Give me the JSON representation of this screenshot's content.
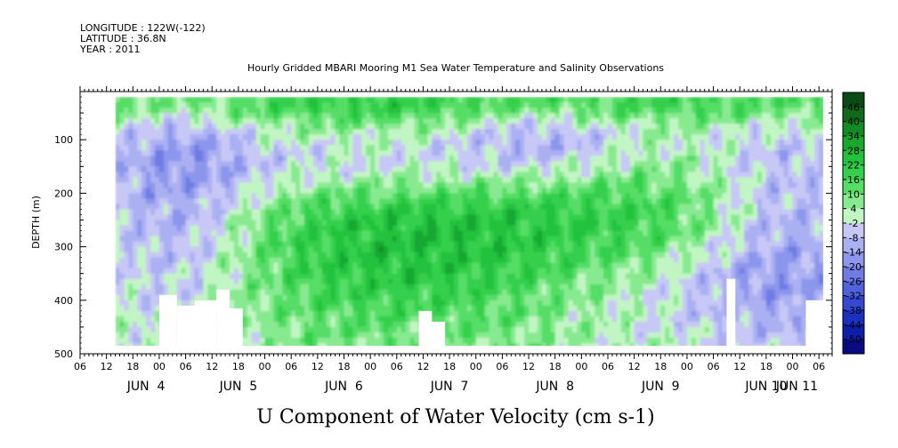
{
  "header": {
    "longitude": "LONGITUDE : 122W(-122)",
    "latitude": "LATITUDE : 36.8N",
    "year": "YEAR : 2011"
  },
  "chart_data": {
    "type": "heatmap",
    "title": "Hourly Gridded MBARI Mooring M1 Sea Water Temperature and Salinity Observations",
    "xlabel": "U Component of Water Velocity (cm s-1)",
    "ylabel": "DEPTH (m)",
    "ylim": [
      500,
      10
    ],
    "y_ticks": [
      100,
      200,
      300,
      400,
      500
    ],
    "x_range_hours": "2011-06-04 06:00 to 2011-06-11 09:00",
    "x_hour_ticks": [
      "06",
      "12",
      "18",
      "00",
      "06",
      "12",
      "18",
      "00",
      "06",
      "12",
      "18",
      "00",
      "06",
      "12",
      "18",
      "00",
      "06",
      "12",
      "18",
      "00",
      "06",
      "12",
      "18",
      "00",
      "06",
      "12",
      "18",
      "00",
      "06"
    ],
    "x_day_labels": [
      "JUN  4",
      "JUN  5",
      "JUN  6",
      "JUN  7",
      "JUN  8",
      "JUN  9",
      "JUN 10",
      "JUN 11"
    ],
    "colorbar": {
      "labels": [
        "46",
        "40",
        "34",
        "28",
        "22",
        "16",
        "10",
        "4",
        "-2",
        "-8",
        "-14",
        "-20",
        "-26",
        "-32",
        "-38",
        "-44",
        "-50"
      ],
      "colors": [
        "#0a4a14",
        "#0f6a1c",
        "#138a26",
        "#18a830",
        "#22c23c",
        "#34d04c",
        "#55dd66",
        "#88ea90",
        "#c2f5c4",
        "#c8c8f6",
        "#aab0f2",
        "#8c96ec",
        "#6e7ce4",
        "#5062dc",
        "#3448d2",
        "#1c30c0",
        "#0e1ea8",
        "#080c80"
      ]
    },
    "field_description": {
      "data_start": "2011-06-04 14:00",
      "data_end": "2011-06-11 07:00",
      "depth_top": 20,
      "depth_bottom": 485,
      "dominant_near_surface": "positive (green)",
      "dominant_mid_depth_jun5_to_jun8": "positive (green, up to ~30)",
      "dominant_jun4_and_jun9_to_jun11": "negative (blue/lavender, down to ~-20)"
    }
  }
}
